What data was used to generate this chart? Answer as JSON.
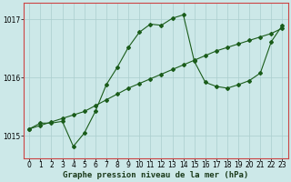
{
  "xlabel_bottom": "Graphe pression niveau de la mer (hPa)",
  "bg_color": "#cce8e8",
  "grid_color": "#aacece",
  "line_color": "#1a5c1a",
  "marker": "D",
  "marker_size": 2.0,
  "linewidth": 0.8,
  "ylim": [
    1014.62,
    1017.28
  ],
  "xlim": [
    -0.5,
    23.5
  ],
  "yticks": [
    1015,
    1016,
    1017
  ],
  "xticks": [
    0,
    1,
    2,
    3,
    4,
    5,
    6,
    7,
    8,
    9,
    10,
    11,
    12,
    13,
    14,
    15,
    16,
    17,
    18,
    19,
    20,
    21,
    22,
    23
  ],
  "spine_color": "#cc4444",
  "tick_fontsize": 5.5,
  "label_fontsize": 6.5,
  "series_jagged_y": [
    1015.12,
    1015.22,
    1015.22,
    1015.25,
    1014.82,
    1015.05,
    1015.42,
    1015.88,
    1016.18,
    1016.52,
    1016.78,
    1016.92,
    1016.9,
    1017.02,
    1017.08,
    1016.28,
    1015.92,
    1015.85,
    1015.82,
    1015.88,
    1015.95,
    1016.08,
    1016.62,
    1016.9
  ],
  "series_linear_y": [
    1015.12,
    1015.18,
    1015.24,
    1015.3,
    1015.36,
    1015.42,
    1015.52,
    1015.62,
    1015.72,
    1015.82,
    1015.9,
    1015.98,
    1016.06,
    1016.14,
    1016.22,
    1016.3,
    1016.38,
    1016.46,
    1016.52,
    1016.58,
    1016.64,
    1016.7,
    1016.76,
    1016.85
  ]
}
